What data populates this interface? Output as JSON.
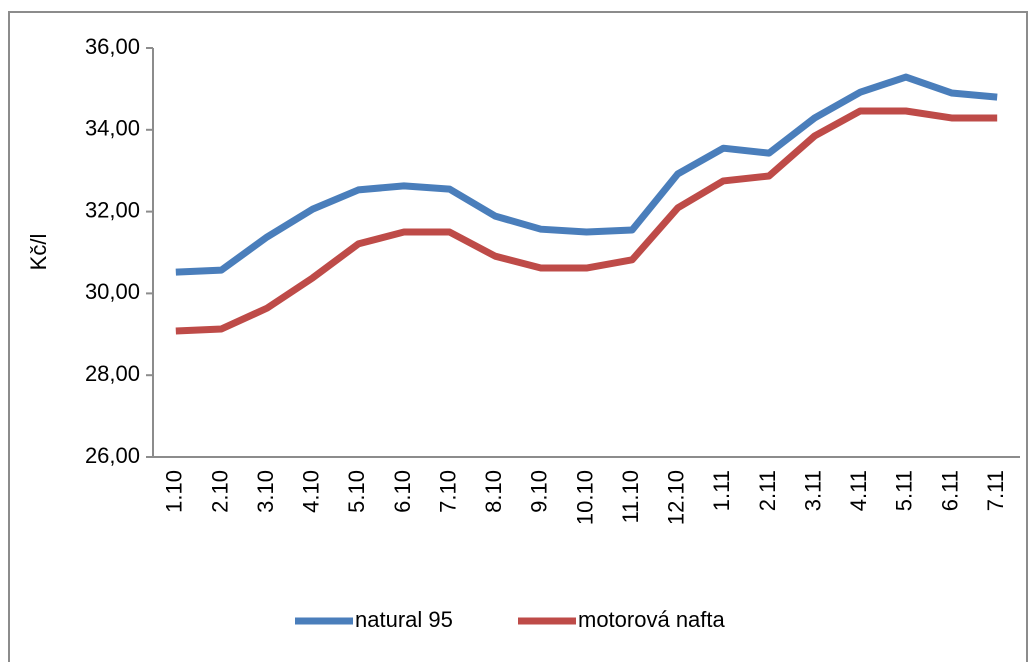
{
  "chart_data": {
    "type": "line",
    "y_label": "Kč/l",
    "categories": [
      "1.10",
      "2.10",
      "3.10",
      "4.10",
      "5.10",
      "6.10",
      "7.10",
      "8.10",
      "9.10",
      "10.10",
      "11.10",
      "12.10",
      "1.11",
      "2.11",
      "3.11",
      "4.11",
      "5.11",
      "6.11",
      "7.11"
    ],
    "series": [
      {
        "name": "natural 95",
        "color": "#4a7ebb",
        "values": [
          30.52,
          30.57,
          31.38,
          32.06,
          32.53,
          32.63,
          32.55,
          31.89,
          31.57,
          31.5,
          31.55,
          32.92,
          33.55,
          33.43,
          34.29,
          34.92,
          35.29,
          34.9,
          34.8
        ]
      },
      {
        "name": "motorová nafta",
        "color": "#be4b48",
        "values": [
          29.08,
          29.13,
          29.64,
          30.38,
          31.21,
          31.5,
          31.5,
          30.91,
          30.62,
          30.62,
          30.82,
          32.09,
          32.75,
          32.87,
          33.85,
          34.46,
          34.46,
          34.29,
          34.29
        ]
      }
    ],
    "ylim": [
      26,
      36
    ],
    "yticks": [
      {
        "value": 26,
        "label": "26,00"
      },
      {
        "value": 28,
        "label": "28,00"
      },
      {
        "value": 30,
        "label": "30,00"
      },
      {
        "value": 32,
        "label": "32,00"
      },
      {
        "value": 34,
        "label": "34,00"
      },
      {
        "value": 36,
        "label": "36,00"
      }
    ],
    "grid": false,
    "legend": "bottom"
  }
}
